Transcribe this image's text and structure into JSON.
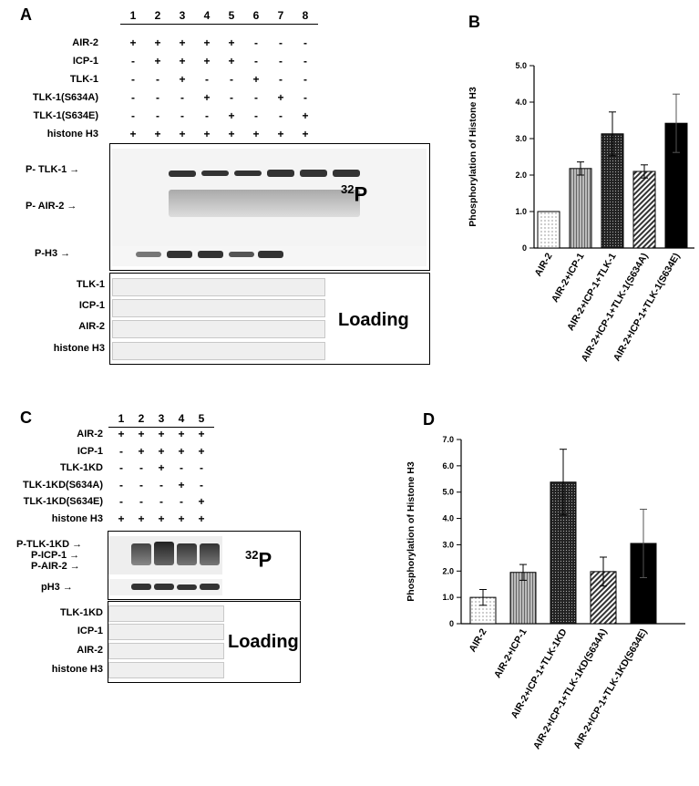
{
  "panels": {
    "A": {
      "letter": "A",
      "lanes": [
        "1",
        "2",
        "3",
        "4",
        "5",
        "6",
        "7",
        "8"
      ],
      "rows": [
        {
          "label": "AIR-2",
          "marks": [
            "+",
            "+",
            "+",
            "+",
            "+",
            "-",
            "-",
            "-"
          ]
        },
        {
          "label": "ICP-1",
          "marks": [
            "-",
            "+",
            "+",
            "+",
            "+",
            "-",
            "-",
            "-"
          ]
        },
        {
          "label": "TLK-1",
          "marks": [
            "-",
            "-",
            "+",
            "-",
            "-",
            "+",
            "-",
            "-"
          ]
        },
        {
          "label": "TLK-1(S634A)",
          "marks": [
            "-",
            "-",
            "-",
            "+",
            "-",
            "-",
            "+",
            "-"
          ]
        },
        {
          "label": "TLK-1(S634E)",
          "marks": [
            "-",
            "-",
            "-",
            "-",
            "+",
            "-",
            "-",
            "+"
          ]
        },
        {
          "label": "histone H3",
          "marks": [
            "+",
            "+",
            "+",
            "+",
            "+",
            "+",
            "+",
            "+"
          ]
        }
      ],
      "autorad_labels": [
        "P- TLK-1",
        "P- AIR-2",
        "P-H3"
      ],
      "p32_label": "P",
      "p32_sup": "32",
      "loading_rows": [
        "TLK-1",
        "ICP-1",
        "AIR-2",
        "histone H3"
      ],
      "loading_label": "Loading"
    },
    "C": {
      "letter": "C",
      "lanes": [
        "1",
        "2",
        "3",
        "4",
        "5"
      ],
      "rows": [
        {
          "label": "AIR-2",
          "marks": [
            "+",
            "+",
            "+",
            "+",
            "+"
          ]
        },
        {
          "label": "ICP-1",
          "marks": [
            "-",
            "+",
            "+",
            "+",
            "+"
          ]
        },
        {
          "label": "TLK-1KD",
          "marks": [
            "-",
            "-",
            "+",
            "-",
            "-"
          ]
        },
        {
          "label": "TLK-1KD(S634A)",
          "marks": [
            "-",
            "-",
            "-",
            "+",
            "-"
          ]
        },
        {
          "label": "TLK-1KD(S634E)",
          "marks": [
            "-",
            "-",
            "-",
            "-",
            "+"
          ]
        },
        {
          "label": "histone H3",
          "marks": [
            "+",
            "+",
            "+",
            "+",
            "+"
          ]
        }
      ],
      "autorad_labels": [
        "P-TLK-1KD",
        "P-ICP-1",
        "P-AIR-2",
        "pH3"
      ],
      "p32_label": "P",
      "p32_sup": "32",
      "loading_rows": [
        "TLK-1KD",
        "ICP-1",
        "AIR-2",
        "histone H3"
      ],
      "loading_label": "Loading"
    },
    "B": {
      "letter": "B"
    },
    "D": {
      "letter": "D"
    }
  },
  "chart_data": [
    {
      "type": "bar",
      "panel": "B",
      "ylabel": "Phosphorylation of Histone H3",
      "categories": [
        "AIR-2",
        "AIR-2+ICP-1",
        "AIR-2+ICP-1+TLK-1",
        "AIR-2+ICP-1+TLK-1(S634A)",
        "AIR-2+ICP-1+TLK-1(S634E)"
      ],
      "values": [
        1.0,
        2.18,
        3.13,
        2.1,
        3.42
      ],
      "errors": [
        0,
        0.18,
        0.6,
        0.18,
        0.8
      ],
      "fills": [
        "dots-light",
        "vlines-gray",
        "dots-dark",
        "diag-lines",
        "solid-black"
      ],
      "ylim": [
        0,
        5.0
      ],
      "yticks": [
        "0",
        "1.0",
        "2.0",
        "3.0",
        "4.0",
        "5.0"
      ]
    },
    {
      "type": "bar",
      "panel": "D",
      "ylabel": "Phosphorylation of Histone H3",
      "categories": [
        "AIR-2",
        "AIR-2+ICP-1",
        "AIR-2+ICP-1+TLK-1KD",
        "AIR-2+ICP-1+TLK-1KD(S634A)",
        "AIR-2+ICP-1+TLK-1KD(S634E)"
      ],
      "values": [
        1.0,
        1.95,
        5.38,
        1.98,
        3.05
      ],
      "errors": [
        0.3,
        0.3,
        1.25,
        0.55,
        1.3
      ],
      "fills": [
        "dots-light",
        "vlines-gray",
        "dots-dark",
        "diag-lines",
        "solid-black"
      ],
      "ylim": [
        0,
        7.0
      ],
      "yticks": [
        "0",
        "1.0",
        "2.0",
        "3.0",
        "4.0",
        "5.0",
        "6.0",
        "7.0"
      ]
    }
  ]
}
